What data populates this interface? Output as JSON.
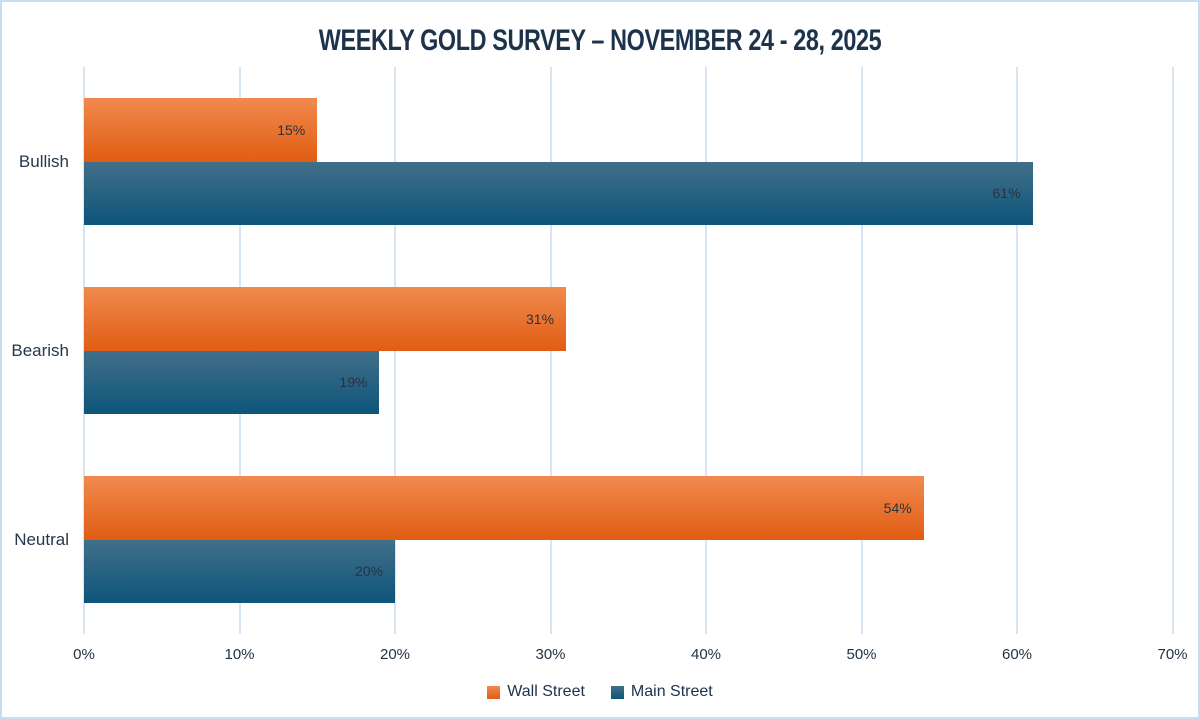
{
  "chart_data": {
    "type": "bar",
    "orientation": "horizontal",
    "title": "WEEKLY GOLD SURVEY – NOVEMBER 24 - 28, 2025",
    "categories": [
      "Bullish",
      "Bearish",
      "Neutral"
    ],
    "series": [
      {
        "name": "Wall Street",
        "values": [
          15,
          31,
          54
        ],
        "value_labels": [
          "15%",
          "31%",
          "54%"
        ],
        "color_top": "#f18a4e",
        "color_bottom": "#e05d13"
      },
      {
        "name": "Main Street",
        "values": [
          61,
          19,
          20
        ],
        "value_labels": [
          "61%",
          "19%",
          "20%"
        ],
        "color_top": "#416f89",
        "color_bottom": "#0d557a"
      }
    ],
    "x_axis": {
      "min": 0,
      "max": 70,
      "step": 10,
      "tick_labels": [
        "0%",
        "10%",
        "20%",
        "30%",
        "40%",
        "50%",
        "60%",
        "70%"
      ]
    },
    "grid": {
      "vertical": true,
      "horizontal": false,
      "color": "#d7e5f2"
    },
    "legend": {
      "position": "bottom"
    },
    "colors": {
      "background": "#ffffff",
      "border": "#c9ddf0",
      "text": "#1d324b"
    }
  }
}
